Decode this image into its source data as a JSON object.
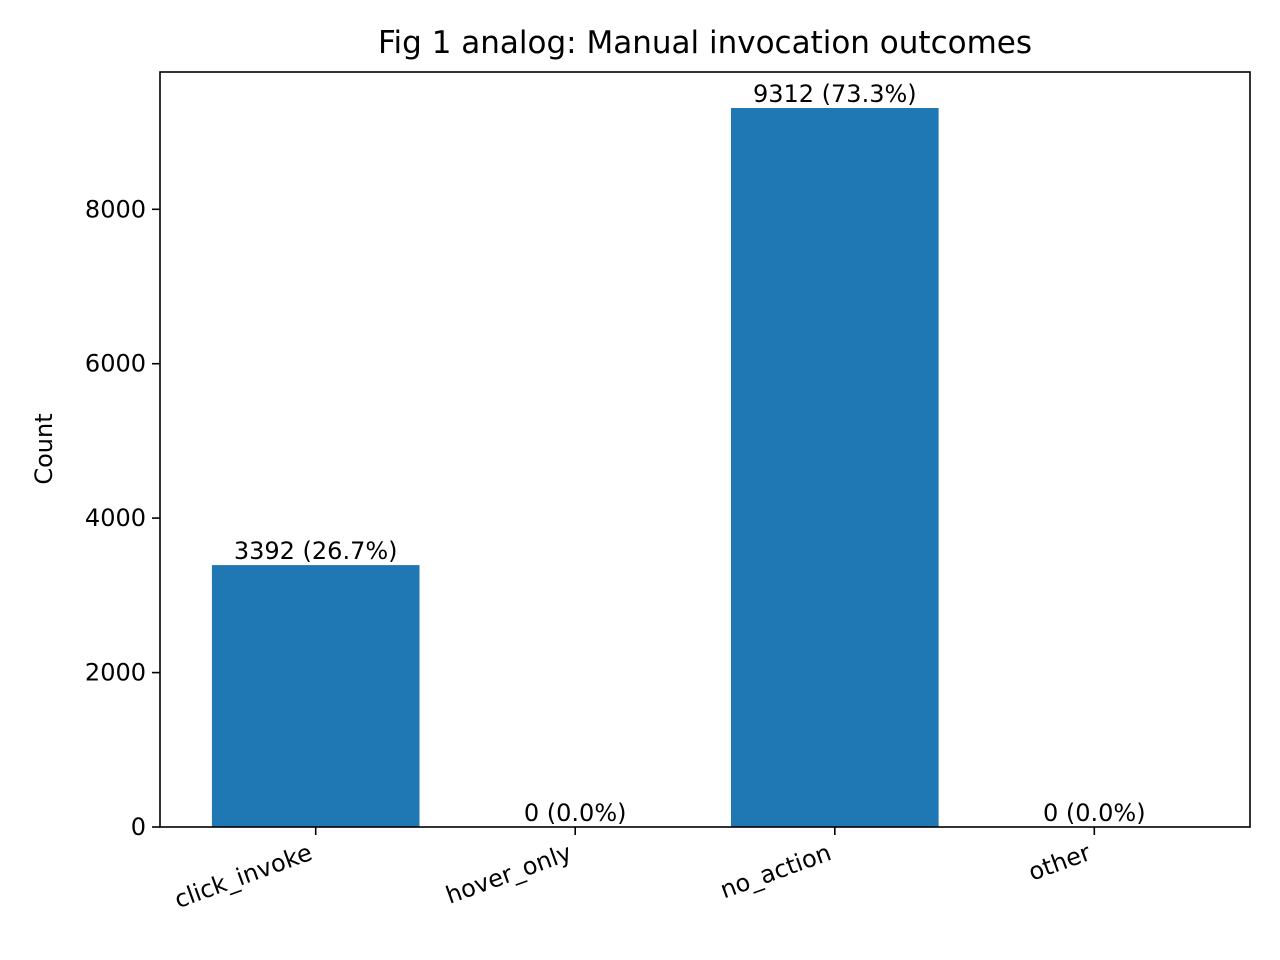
{
  "chart_data": {
    "type": "bar",
    "title": "Fig 1 analog: Manual invocation outcomes",
    "xlabel": "",
    "ylabel": "Count",
    "categories": [
      "click_invoke",
      "hover_only",
      "no_action",
      "other"
    ],
    "values": [
      3392,
      0,
      9312,
      0
    ],
    "data_labels": [
      "3392 (26.7%)",
      "0 (0.0%)",
      "9312 (73.3%)",
      "0 (0.0%)"
    ],
    "ylim": [
      0,
      9777.6
    ],
    "yticks": [
      0,
      2000,
      4000,
      6000,
      8000
    ],
    "grid": false,
    "legend": "none",
    "bar_color": "#1f77b4",
    "x_tick_rotation_deg": 20
  }
}
